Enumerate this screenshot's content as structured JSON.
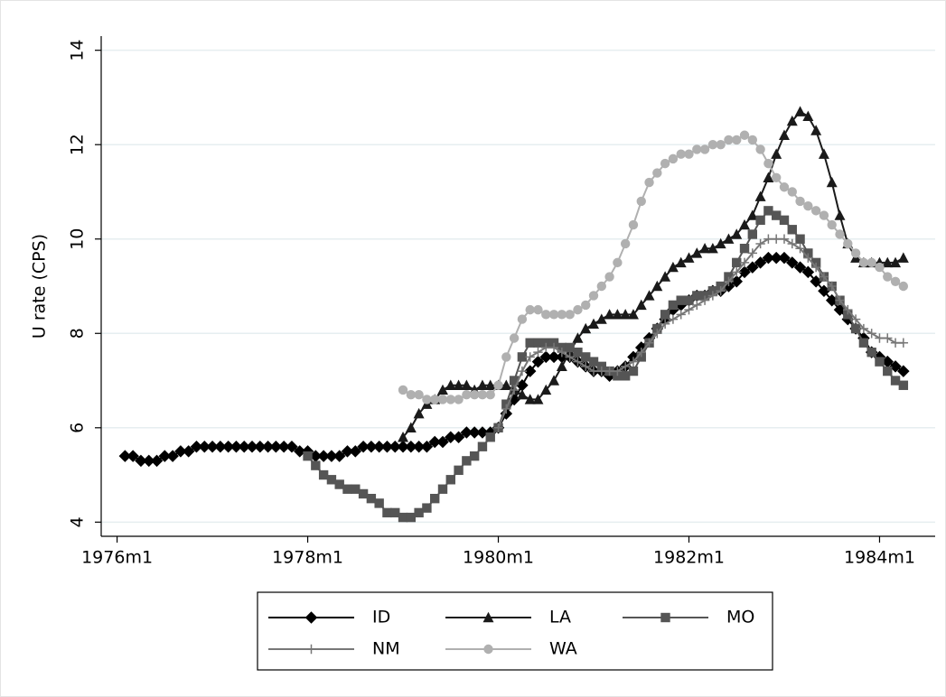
{
  "chart_data": {
    "type": "line",
    "y_label": "U rate (CPS)",
    "x": [
      "1976m2",
      "1976m3",
      "1976m4",
      "1976m5",
      "1976m6",
      "1976m7",
      "1976m8",
      "1976m9",
      "1976m10",
      "1976m11",
      "1976m12",
      "1977m1",
      "1977m2",
      "1977m3",
      "1977m4",
      "1977m5",
      "1977m6",
      "1977m7",
      "1977m8",
      "1977m9",
      "1977m10",
      "1977m11",
      "1977m12",
      "1978m1",
      "1978m2",
      "1978m3",
      "1978m4",
      "1978m5",
      "1978m6",
      "1978m7",
      "1978m8",
      "1978m9",
      "1978m10",
      "1978m11",
      "1978m12",
      "1979m1",
      "1979m2",
      "1979m3",
      "1979m4",
      "1979m5",
      "1979m6",
      "1979m7",
      "1979m8",
      "1979m9",
      "1979m10",
      "1979m11",
      "1979m12",
      "1980m1",
      "1980m2",
      "1980m3",
      "1980m4",
      "1980m5",
      "1980m6",
      "1980m7",
      "1980m8",
      "1980m9",
      "1980m10",
      "1980m11",
      "1980m12",
      "1981m1",
      "1981m2",
      "1981m3",
      "1981m4",
      "1981m5",
      "1981m6",
      "1981m7",
      "1981m8",
      "1981m9",
      "1981m10",
      "1981m11",
      "1981m12",
      "1982m1",
      "1982m2",
      "1982m3",
      "1982m4",
      "1982m5",
      "1982m6",
      "1982m7",
      "1982m8",
      "1982m9",
      "1982m10",
      "1982m11",
      "1982m12",
      "1983m1",
      "1983m2",
      "1983m3",
      "1983m4",
      "1983m5",
      "1983m6",
      "1983m7",
      "1983m8",
      "1983m9",
      "1983m10",
      "1983m11",
      "1983m12",
      "1984m1",
      "1984m2",
      "1984m3",
      "1984m4"
    ],
    "series": [
      {
        "name": "ID",
        "color": "#000000",
        "marker": "diamond",
        "values": [
          5.4,
          5.4,
          5.3,
          5.3,
          5.3,
          5.4,
          5.4,
          5.5,
          5.5,
          5.6,
          5.6,
          5.6,
          5.6,
          5.6,
          5.6,
          5.6,
          5.6,
          5.6,
          5.6,
          5.6,
          5.6,
          5.6,
          5.5,
          5.5,
          5.4,
          5.4,
          5.4,
          5.4,
          5.5,
          5.5,
          5.6,
          5.6,
          5.6,
          5.6,
          5.6,
          5.6,
          5.6,
          5.6,
          5.6,
          5.7,
          5.7,
          5.8,
          5.8,
          5.9,
          5.9,
          5.9,
          5.9,
          6.0,
          6.3,
          6.6,
          6.9,
          7.2,
          7.4,
          7.5,
          7.5,
          7.5,
          7.5,
          7.4,
          7.3,
          7.2,
          7.2,
          7.1,
          7.2,
          7.3,
          7.5,
          7.7,
          7.9,
          8.1,
          8.3,
          8.5,
          8.6,
          8.7,
          8.8,
          8.8,
          8.9,
          8.9,
          9.0,
          9.1,
          9.3,
          9.4,
          9.5,
          9.6,
          9.6,
          9.6,
          9.5,
          9.4,
          9.3,
          9.1,
          8.9,
          8.7,
          8.5,
          8.3,
          8.1,
          7.9,
          7.6,
          7.5,
          7.4,
          7.3,
          7.2
        ]
      },
      {
        "name": "LA",
        "color": "#1a1a1a",
        "marker": "triangle",
        "values": [
          null,
          null,
          null,
          null,
          null,
          null,
          null,
          null,
          null,
          null,
          null,
          null,
          null,
          null,
          null,
          null,
          null,
          null,
          null,
          null,
          null,
          null,
          null,
          null,
          null,
          null,
          null,
          null,
          null,
          null,
          null,
          null,
          null,
          null,
          null,
          5.8,
          6.0,
          6.3,
          6.5,
          6.6,
          6.8,
          6.9,
          6.9,
          6.9,
          6.8,
          6.9,
          6.9,
          6.9,
          6.9,
          6.8,
          6.7,
          6.6,
          6.6,
          6.8,
          7.0,
          7.3,
          7.6,
          7.9,
          8.1,
          8.2,
          8.3,
          8.4,
          8.4,
          8.4,
          8.4,
          8.6,
          8.8,
          9.0,
          9.2,
          9.4,
          9.5,
          9.6,
          9.7,
          9.8,
          9.8,
          9.9,
          10.0,
          10.1,
          10.3,
          10.5,
          10.9,
          11.3,
          11.8,
          12.2,
          12.5,
          12.7,
          12.6,
          12.3,
          11.8,
          11.2,
          10.5,
          9.9,
          9.6,
          9.5,
          9.5,
          9.5,
          9.5,
          9.5,
          9.6
        ]
      },
      {
        "name": "MO",
        "color": "#555555",
        "marker": "square",
        "values": [
          null,
          null,
          null,
          null,
          null,
          null,
          null,
          null,
          null,
          null,
          null,
          null,
          null,
          null,
          null,
          null,
          null,
          null,
          null,
          null,
          null,
          null,
          null,
          5.4,
          5.2,
          5.0,
          4.9,
          4.8,
          4.7,
          4.7,
          4.6,
          4.5,
          4.4,
          4.2,
          4.2,
          4.1,
          4.1,
          4.2,
          4.3,
          4.5,
          4.7,
          4.9,
          5.1,
          5.3,
          5.4,
          5.6,
          5.8,
          6.0,
          6.5,
          7.0,
          7.5,
          7.8,
          7.8,
          7.8,
          7.8,
          7.7,
          7.7,
          7.6,
          7.5,
          7.4,
          7.3,
          7.2,
          7.1,
          7.1,
          7.2,
          7.5,
          7.8,
          8.1,
          8.4,
          8.6,
          8.7,
          8.7,
          8.8,
          8.8,
          8.9,
          9.0,
          9.2,
          9.5,
          9.8,
          10.1,
          10.4,
          10.6,
          10.5,
          10.4,
          10.2,
          10.0,
          9.7,
          9.5,
          9.2,
          9.0,
          8.7,
          8.4,
          8.1,
          7.8,
          7.6,
          7.4,
          7.2,
          7.0,
          6.9
        ]
      },
      {
        "name": "NM",
        "color": "#777777",
        "marker": "plus",
        "values": [
          null,
          null,
          null,
          null,
          null,
          null,
          null,
          null,
          null,
          null,
          null,
          null,
          null,
          null,
          null,
          null,
          null,
          null,
          null,
          null,
          null,
          null,
          null,
          null,
          null,
          null,
          null,
          null,
          null,
          null,
          null,
          null,
          null,
          null,
          null,
          null,
          null,
          null,
          null,
          null,
          null,
          null,
          null,
          null,
          null,
          null,
          null,
          6.0,
          6.4,
          6.8,
          7.2,
          7.5,
          7.6,
          7.7,
          7.7,
          7.6,
          7.5,
          7.4,
          7.3,
          7.2,
          7.2,
          7.2,
          7.2,
          7.3,
          7.4,
          7.6,
          7.8,
          8.0,
          8.2,
          8.3,
          8.4,
          8.5,
          8.6,
          8.7,
          8.8,
          8.9,
          9.1,
          9.3,
          9.5,
          9.7,
          9.9,
          10.0,
          10.0,
          10.0,
          9.9,
          9.8,
          9.6,
          9.4,
          9.2,
          9.0,
          8.7,
          8.5,
          8.3,
          8.1,
          8.0,
          7.9,
          7.9,
          7.8,
          7.8
        ]
      },
      {
        "name": "WA",
        "color": "#b0b0b0",
        "marker": "circle",
        "values": [
          null,
          null,
          null,
          null,
          null,
          null,
          null,
          null,
          null,
          null,
          null,
          null,
          null,
          null,
          null,
          null,
          null,
          null,
          null,
          null,
          null,
          null,
          null,
          null,
          null,
          null,
          null,
          null,
          null,
          null,
          null,
          null,
          null,
          null,
          null,
          6.8,
          6.7,
          6.7,
          6.6,
          6.6,
          6.6,
          6.6,
          6.6,
          6.7,
          6.7,
          6.7,
          6.7,
          6.9,
          7.5,
          7.9,
          8.3,
          8.5,
          8.5,
          8.4,
          8.4,
          8.4,
          8.4,
          8.5,
          8.6,
          8.8,
          9.0,
          9.2,
          9.5,
          9.9,
          10.3,
          10.8,
          11.2,
          11.4,
          11.6,
          11.7,
          11.8,
          11.8,
          11.9,
          11.9,
          12.0,
          12.0,
          12.1,
          12.1,
          12.2,
          12.1,
          11.9,
          11.6,
          11.3,
          11.1,
          11.0,
          10.8,
          10.7,
          10.6,
          10.5,
          10.3,
          10.1,
          9.9,
          9.7,
          9.5,
          9.5,
          9.4,
          9.2,
          9.1,
          9.0
        ]
      }
    ],
    "xlim": [
      "1975m11",
      "1984m8"
    ],
    "xticks": [
      "1976m1",
      "1978m1",
      "1980m1",
      "1982m1",
      "1984m1"
    ],
    "ylim": [
      3.7,
      14.3
    ],
    "yticks": [
      4,
      6,
      8,
      10,
      12,
      14
    ],
    "grid": true,
    "legend_position": "bottom"
  }
}
